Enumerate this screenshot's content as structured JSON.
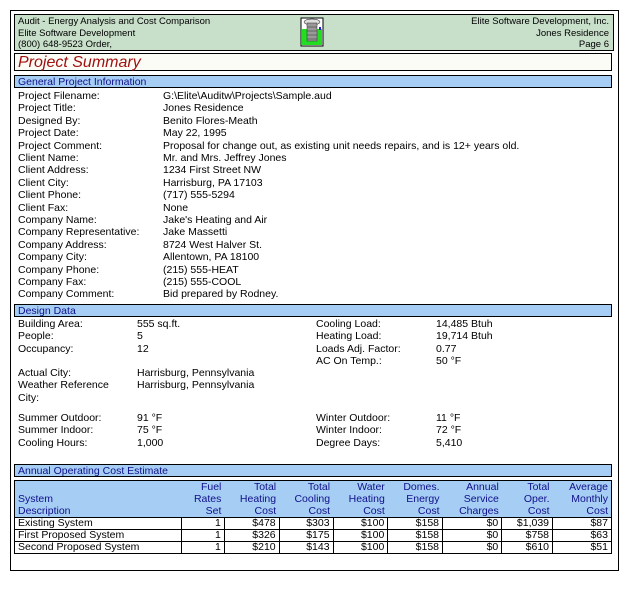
{
  "header": {
    "left": [
      "Audit - Energy Analysis and Cost Comparison",
      "Elite Software Development",
      "(800) 648-9523 Order,"
    ],
    "right": [
      "Elite Software Development, Inc.",
      "Jones Residence",
      "Page 6"
    ],
    "logo": "building-logo-icon"
  },
  "title": "Project Summary",
  "general": {
    "heading": "General Project Information",
    "rows": [
      [
        "Project Filename:",
        "G:\\Elite\\Auditw\\Projects\\Sample.aud"
      ],
      [
        "Project Title:",
        "Jones Residence"
      ],
      [
        "Designed By:",
        "Benito Flores-Meath"
      ],
      [
        "Project Date:",
        "May 22, 1995"
      ],
      [
        "Project Comment:",
        "Proposal for change out, as existing unit needs repairs, and is 12+ years old."
      ],
      [
        "Client Name:",
        "Mr. and Mrs. Jeffrey Jones"
      ],
      [
        "Client Address:",
        "1234 First Street NW"
      ],
      [
        "Client City:",
        "Harrisburg, PA 17103"
      ],
      [
        "Client Phone:",
        "(717) 555-5294"
      ],
      [
        "Client Fax:",
        "None"
      ],
      [
        "Company Name:",
        "Jake's Heating and Air"
      ],
      [
        "Company Representative:",
        "Jake Massetti"
      ],
      [
        "Company Address:",
        "8724 West Halver St."
      ],
      [
        "Company City:",
        "Allentown, PA 18100"
      ],
      [
        "Company Phone:",
        "(215) 555-HEAT"
      ],
      [
        "Company Fax:",
        "(215) 555-COOL"
      ],
      [
        "Company Comment:",
        "Bid prepared by Rodney."
      ]
    ]
  },
  "design": {
    "heading": "Design Data",
    "left1": [
      [
        "Building Area:",
        "555 sq.ft."
      ],
      [
        "People:",
        "5"
      ],
      [
        "Occupancy:",
        "12"
      ]
    ],
    "right1": [
      [
        "Cooling Load:",
        "14,485 Btuh"
      ],
      [
        "Heating Load:",
        "19,714 Btuh"
      ],
      [
        "Loads Adj. Factor:",
        "0.77"
      ],
      [
        "AC On Temp.:",
        "50 °F"
      ]
    ],
    "city": [
      [
        "Actual City:",
        "Harrisburg, Pennsylvania"
      ],
      [
        "Weather Reference",
        "Harrisburg, Pennsylvania"
      ],
      [
        "City:",
        ""
      ]
    ],
    "left2": [
      [
        "Summer Outdoor:",
        "91 °F"
      ],
      [
        "Summer Indoor:",
        "75 °F"
      ],
      [
        "Cooling Hours:",
        "1,000"
      ]
    ],
    "right2": [
      [
        "Winter Outdoor:",
        "11 °F"
      ],
      [
        "Winter Indoor:",
        "72 °F"
      ],
      [
        "Degree Days:",
        "5,410"
      ]
    ]
  },
  "cost": {
    "heading": "Annual Operating Cost Estimate",
    "columns": [
      [
        "",
        "System",
        "Description"
      ],
      [
        "Fuel",
        "Rates",
        "Set"
      ],
      [
        "Total",
        "Heating",
        "Cost"
      ],
      [
        "Total",
        "Cooling",
        "Cost"
      ],
      [
        "Water",
        "Heating",
        "Cost"
      ],
      [
        "Domes.",
        "Energy",
        "Cost"
      ],
      [
        "Annual",
        "Service",
        "Charges"
      ],
      [
        "Total",
        "Oper.",
        "Cost"
      ],
      [
        "Average",
        "Monthly",
        "Cost"
      ]
    ],
    "rows": [
      [
        "Existing System",
        "1",
        "$478",
        "$303",
        "$100",
        "$158",
        "$0",
        "$1,039",
        "$87"
      ],
      [
        "First Proposed System",
        "1",
        "$326",
        "$175",
        "$100",
        "$158",
        "$0",
        "$758",
        "$63"
      ],
      [
        "Second Proposed System",
        "1",
        "$210",
        "$143",
        "$100",
        "$158",
        "$0",
        "$610",
        "$51"
      ]
    ]
  }
}
